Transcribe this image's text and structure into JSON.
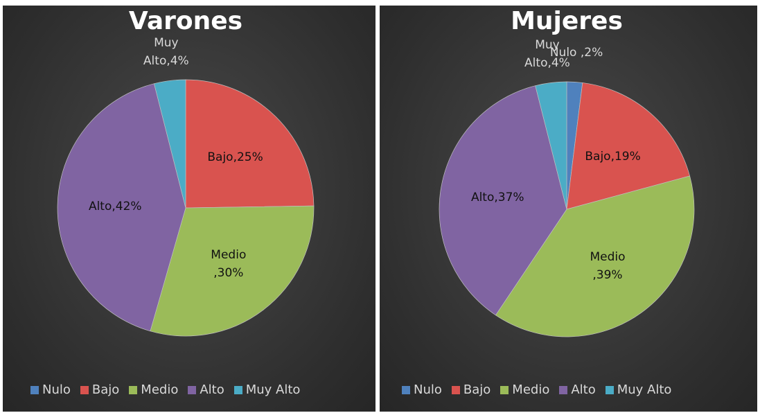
{
  "chart_data": [
    {
      "type": "pie",
      "title": "Varones",
      "categories": [
        "Nulo",
        "Bajo",
        "Medio",
        "Alto",
        "Muy Alto"
      ],
      "values": [
        0,
        25,
        30,
        42,
        4
      ],
      "value_labels": [
        null,
        "Bajo,25%",
        "Medio ,30%",
        "Alto,42%",
        "Muy Alto,4%"
      ],
      "colors": [
        "#4f81bd",
        "#d9534f",
        "#9bbb59",
        "#8064a2",
        "#4bacc6"
      ]
    },
    {
      "type": "pie",
      "title": "Mujeres",
      "categories": [
        "Nulo",
        "Bajo",
        "Medio",
        "Alto",
        "Muy Alto"
      ],
      "values": [
        2,
        19,
        39,
        37,
        4
      ],
      "value_labels": [
        "Nulo ,2%",
        "Bajo,19%",
        "Medio ,39%",
        "Alto,37%",
        "Muy Alto,4%"
      ],
      "colors": [
        "#4f81bd",
        "#d9534f",
        "#9bbb59",
        "#8064a2",
        "#4bacc6"
      ]
    }
  ]
}
